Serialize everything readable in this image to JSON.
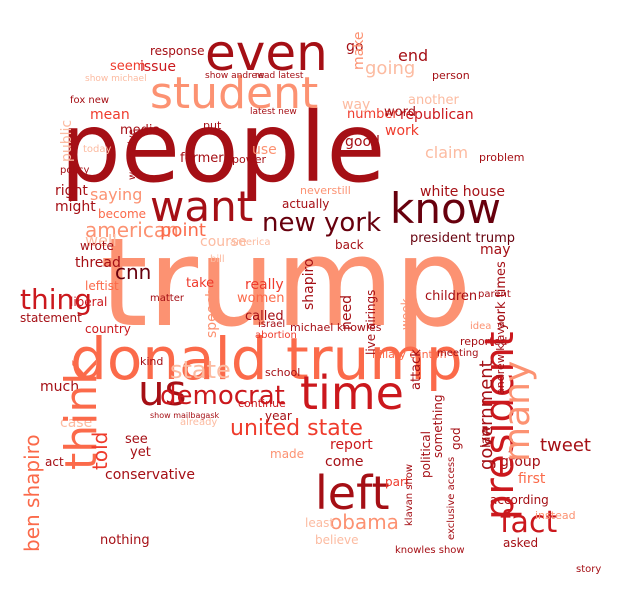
{
  "colors": {
    "background": "#ffffff",
    "palette": [
      "#67000d",
      "#a50f15",
      "#cb181d",
      "#ef3b2c",
      "#fb6a4a",
      "#fc9272",
      "#fcbba1"
    ]
  },
  "words": {
    "trump": "trump",
    "people": "people",
    "donald_trump": "donald trump",
    "even": "even",
    "student": "student",
    "know": "know",
    "want": "want",
    "time": "time",
    "left": "left",
    "us": "us",
    "think": "think",
    "president": "president",
    "democrat": "democrat",
    "fact": "fact",
    "thing": "thing",
    "new_york": "new york",
    "united_state": "united state",
    "many": "many",
    "ben_shapiro": "ben shapiro",
    "obama": "obama",
    "government": "government",
    "state": "state",
    "republican": "republican",
    "going": "going",
    "cnn": "cnn",
    "american": "american",
    "point": "point",
    "issue": "issue",
    "seem": "seem",
    "response": "response",
    "make": "make",
    "go": "go",
    "end": "end",
    "number": "number",
    "way": "way",
    "claim": "claim",
    "work": "work",
    "good": "good",
    "word": "word",
    "another": "another",
    "white_house": "white house",
    "president_trump": "president trump",
    "women": "women",
    "really": "really",
    "called": "called",
    "take": "take",
    "need": "need",
    "children": "children",
    "law": "law",
    "york_times": "york times",
    "political": "political",
    "attack": "attack",
    "something": "something",
    "report": "report",
    "come": "come",
    "believe": "believe",
    "least": "least",
    "part": "part",
    "made": "made",
    "year": "year",
    "school": "school",
    "abortion": "abortion",
    "israel": "israel",
    "michael_knowles": "michael knowles",
    "continue": "continue",
    "saying": "saying",
    "become": "become",
    "might": "might",
    "right": "right",
    "well": "well",
    "thread": "thread",
    "leftist": "leftist",
    "liberal": "liberal",
    "statement": "statement",
    "country": "country",
    "wrote": "wrote",
    "much": "much",
    "see": "see",
    "yet": "yet",
    "conservative": "conservative",
    "told": "told",
    "nothing": "nothing",
    "tweet": "tweet",
    "group": "group",
    "first": "first",
    "according": "according",
    "asked": "asked",
    "instead": "instead",
    "mean": "mean",
    "media": "media",
    "former": "former",
    "use": "use",
    "actually": "actually",
    "neverstill": "neverstill",
    "shapiro": "shapiro",
    "matter": "matter",
    "back": "back",
    "speech": "speech",
    "course": "course",
    "power": "power",
    "problem": "problem",
    "may": "may",
    "parent": "parent",
    "reported": "reported",
    "live_airings": "live airings",
    "andrew_klavan": "andrew klavan",
    "exclusive_access": "exclusive access",
    "god": "god",
    "case": "case",
    "act": "act",
    "kind": "kind",
    "story": "story",
    "hillary_clinton": "hillary clinton",
    "meeting": "meeting",
    "klavan_show": "klavan show",
    "person": "person",
    "public": "public",
    "today": "today",
    "knowles_show": "knowles show",
    "fox_new": "fox new",
    "already": "already",
    "show_michael": "show michael",
    "show_andrew": "show andrew",
    "read_latest": "read latest",
    "latest_new": "latest new",
    "watch_live": "watch live",
    "idea": "idea",
    "america": "america",
    "policy": "policy",
    "bill": "bill",
    "week": "week",
    "show_mailbag": "show mailbagask",
    "put": "put"
  }
}
